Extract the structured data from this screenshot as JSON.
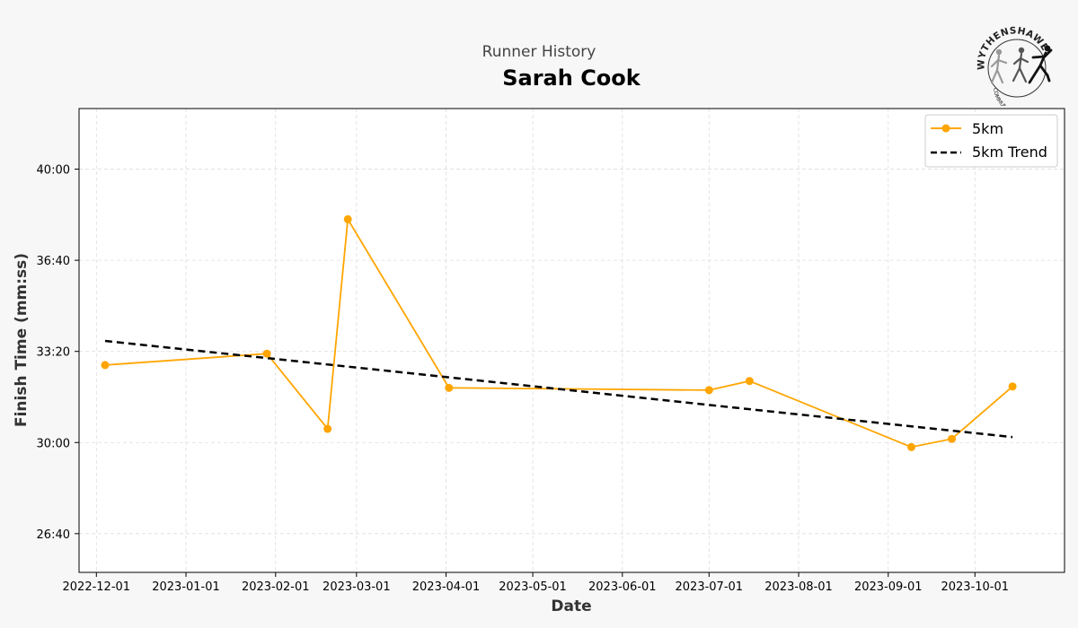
{
  "header": {
    "subtitle": "Runner History",
    "title": "Sarah Cook"
  },
  "logo": {
    "text_top": "WYTHENSHAWE",
    "text_bottom": "COMMUNITY RUN"
  },
  "chart_data": {
    "type": "line",
    "title": "Sarah Cook",
    "subtitle": "Runner History",
    "xlabel": "Date",
    "ylabel": "Finish Time (mm:ss)",
    "x_ticks": [
      "2022-12-01",
      "2023-01-01",
      "2023-02-01",
      "2023-03-01",
      "2023-04-01",
      "2023-05-01",
      "2023-06-01",
      "2023-07-01",
      "2023-08-01",
      "2023-09-01",
      "2023-10-01"
    ],
    "y_ticks": [
      1600,
      1800,
      2000,
      2200,
      2400
    ],
    "y_tick_labels": [
      "26:40",
      "30:00",
      "33:20",
      "36:40",
      "40:00"
    ],
    "xlim": [
      "2022-11-25",
      "2023-11-01"
    ],
    "ylim": [
      1515,
      2533
    ],
    "grid": true,
    "legend_position": "top-right",
    "series": [
      {
        "name": "5km",
        "color": "#FFA500",
        "style": "solid-with-markers",
        "x": [
          "2022-12-04",
          "2023-01-29",
          "2023-02-19",
          "2023-02-26",
          "2023-04-02",
          "2023-07-01",
          "2023-07-15",
          "2023-09-09",
          "2023-09-23",
          "2023-10-14"
        ],
        "y": [
          1970,
          1995,
          1830,
          2290,
          1920,
          1915,
          1935,
          1790,
          1808,
          1923
        ]
      },
      {
        "name": "5km Trend",
        "color": "#000000",
        "style": "dashed",
        "x": [
          "2022-12-04",
          "2023-10-14"
        ],
        "y": [
          2023,
          1812
        ]
      }
    ]
  }
}
